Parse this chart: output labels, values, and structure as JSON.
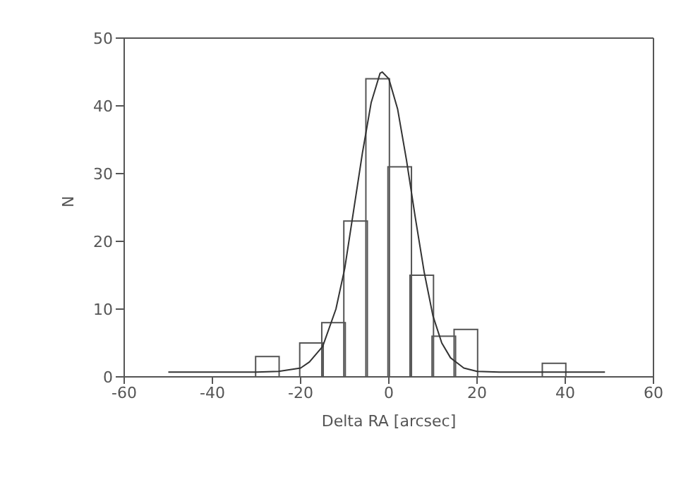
{
  "chart_data": {
    "type": "histogram",
    "xlabel": "Delta RA [arcsec]",
    "ylabel": "N",
    "xlim": [
      -60,
      60
    ],
    "xticks": [
      -60,
      -40,
      -20,
      0,
      20,
      40,
      60
    ],
    "ylim": [
      0,
      50
    ],
    "yticks": [
      0,
      10,
      20,
      30,
      40,
      50
    ],
    "marker": "none",
    "line_style": "solid",
    "series": [
      {
        "color": "#555555",
        "bins": [
          -50,
          -45,
          -40,
          -35,
          -30,
          -25,
          -20,
          -15,
          -10,
          -5,
          0,
          5,
          10,
          15,
          20,
          25,
          30,
          35,
          40,
          45,
          50
        ],
        "values": [
          0,
          0,
          0,
          0,
          3,
          0,
          5,
          8,
          23,
          44,
          31,
          15,
          6,
          7,
          0,
          0,
          0,
          2,
          0,
          0
        ]
      },
      {
        "type": "line",
        "color": "#333333",
        "x": [
          -50,
          -30,
          -25,
          -20,
          -18,
          -15,
          -12,
          -10,
          -8,
          -6,
          -4,
          -2,
          -1.5,
          0,
          2,
          4,
          6,
          8,
          10,
          12,
          14,
          17,
          20,
          25,
          49
        ],
        "values": [
          0.7,
          0.7,
          0.8,
          1.3,
          2.2,
          4.5,
          10,
          16,
          24.5,
          33,
          40.5,
          44.8,
          45,
          44,
          39.5,
          32,
          23.5,
          15.5,
          9,
          5,
          2.8,
          1.3,
          0.8,
          0.7,
          0.7
        ]
      }
    ]
  }
}
